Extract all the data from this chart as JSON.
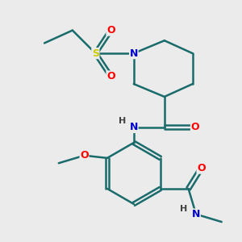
{
  "background_color": "#ebebeb",
  "atom_colors": {
    "C": "#000000",
    "N": "#0000cc",
    "O": "#ff0000",
    "S": "#cccc00",
    "H": "#404040"
  },
  "bond_color": "#1a6b6b",
  "line_width": 1.8,
  "figsize": [
    3.0,
    3.0
  ],
  "dpi": 100
}
